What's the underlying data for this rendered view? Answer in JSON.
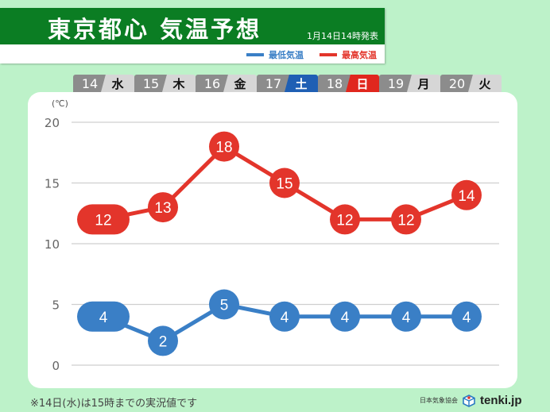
{
  "header": {
    "title": "東京都心 気温予想",
    "issued": "1月14日14時発表",
    "green": "#0b7d23"
  },
  "legend": [
    {
      "label": "最低気温",
      "color": "#3a7fc6"
    },
    {
      "label": "最高気温",
      "color": "#e3352b"
    }
  ],
  "days": [
    {
      "date": "14",
      "weekday": "水",
      "wd_bg": "#d6d6d6",
      "wd_fg": "#111111"
    },
    {
      "date": "15",
      "weekday": "木",
      "wd_bg": "#d6d6d6",
      "wd_fg": "#111111"
    },
    {
      "date": "16",
      "weekday": "金",
      "wd_bg": "#d6d6d6",
      "wd_fg": "#111111"
    },
    {
      "date": "17",
      "weekday": "土",
      "wd_bg": "#1f5fb4",
      "wd_fg": "#ffffff"
    },
    {
      "date": "18",
      "weekday": "日",
      "wd_bg": "#e0271e",
      "wd_fg": "#ffffff"
    },
    {
      "date": "19",
      "weekday": "月",
      "wd_bg": "#d6d6d6",
      "wd_fg": "#111111"
    },
    {
      "date": "20",
      "weekday": "火",
      "wd_bg": "#d6d6d6",
      "wd_fg": "#111111"
    }
  ],
  "chart": {
    "unit_label": "(℃)",
    "y_ticks": [
      "20",
      "15",
      "10",
      "5",
      "0"
    ]
  },
  "chart_data": {
    "type": "line",
    "title": "東京都心 気温予想",
    "categories": [
      "14 水",
      "15 木",
      "16 金",
      "17 土",
      "18 日",
      "19 月",
      "20 火"
    ],
    "series": [
      {
        "name": "最高気温",
        "color": "#e3352b",
        "values": [
          12,
          13,
          18,
          15,
          12,
          12,
          14
        ]
      },
      {
        "name": "最低気温",
        "color": "#3a7fc6",
        "values": [
          4,
          2,
          5,
          4,
          4,
          4,
          4
        ]
      }
    ],
    "xlabel": "",
    "ylabel": "(℃)",
    "ylim": [
      0,
      20
    ],
    "yticks": [
      0,
      5,
      10,
      15,
      20
    ],
    "grid": true,
    "legend_position": "top-right",
    "annotations": [
      "14日(水)は15時までの実況値（pill-shaped markers)"
    ]
  },
  "footer": {
    "note": "※14日(水)は15時までの実況値です",
    "org": "日本気象協会",
    "brand": "tenki.jp"
  }
}
